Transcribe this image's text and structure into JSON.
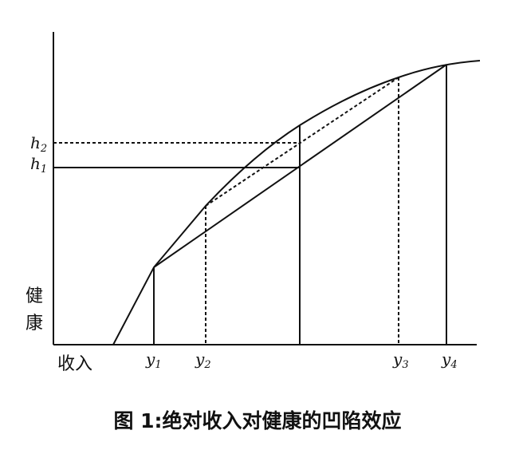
{
  "figure": {
    "caption": "图 1:绝对收入对健康的凹陷效应",
    "x_axis_label": "收入",
    "y_axis_label_chars": [
      "健",
      "康"
    ]
  },
  "x_markers": [
    {
      "id": "y1",
      "base": "y",
      "sub": "1",
      "line": "solid"
    },
    {
      "id": "y2",
      "base": "y",
      "sub": "2",
      "line": "dashed"
    },
    {
      "id": "mid",
      "base": "",
      "sub": "",
      "line": "solid"
    },
    {
      "id": "y3",
      "base": "y",
      "sub": "3",
      "line": "dashed"
    },
    {
      "id": "y4",
      "base": "y",
      "sub": "4",
      "line": "solid"
    }
  ],
  "y_markers": [
    {
      "id": "h2",
      "base": "h",
      "sub": "2",
      "line": "dashed"
    },
    {
      "id": "h1",
      "base": "h",
      "sub": "1",
      "line": "solid"
    }
  ],
  "styles": {
    "stroke": "#111111",
    "background": "#ffffff"
  }
}
